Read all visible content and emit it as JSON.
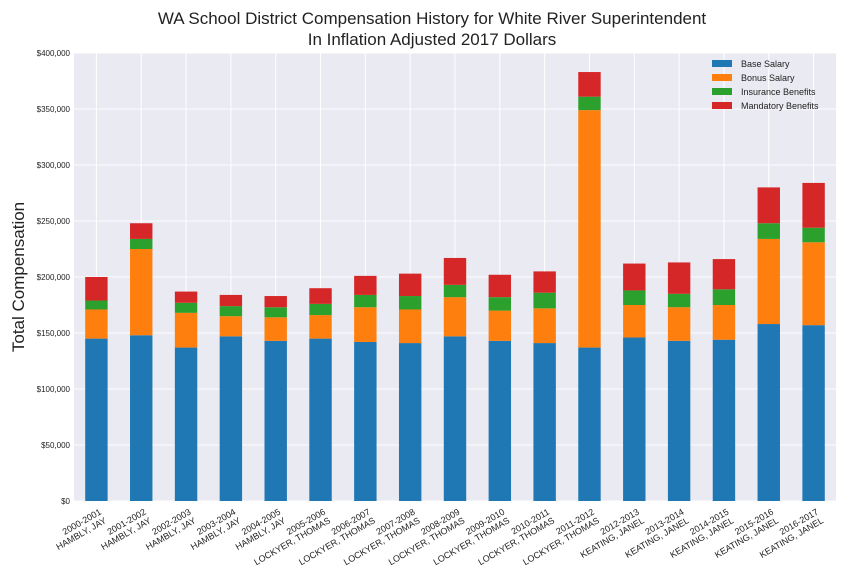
{
  "chart_data": {
    "type": "bar",
    "stacked": true,
    "title": "WA School District Compensation History for White River Superintendent",
    "subtitle": "In Inflation Adjusted 2017 Dollars",
    "xlabel": "",
    "ylabel": "Total Compensation",
    "ylim": [
      0,
      400000
    ],
    "yticks": [
      "$0",
      "$50,000",
      "$100,000",
      "$150,000",
      "$200,000",
      "$250,000",
      "$300,000",
      "$350,000",
      "$400,000"
    ],
    "grid": true,
    "legend_position": "top-right",
    "categories": [
      [
        "2000-2001",
        "HAMBLY, JAY"
      ],
      [
        "2001-2002",
        "HAMBLY, JAY"
      ],
      [
        "2002-2003",
        "HAMBLY, JAY"
      ],
      [
        "2003-2004",
        "HAMBLY, JAY"
      ],
      [
        "2004-2005",
        "HAMBLY, JAY"
      ],
      [
        "2005-2006",
        "LOCKYER, THOMAS"
      ],
      [
        "2006-2007",
        "LOCKYER, THOMAS"
      ],
      [
        "2007-2008",
        "LOCKYER, THOMAS"
      ],
      [
        "2008-2009",
        "LOCKYER, THOMAS"
      ],
      [
        "2009-2010",
        "LOCKYER, THOMAS"
      ],
      [
        "2010-2011",
        "LOCKYER, THOMAS"
      ],
      [
        "2011-2012",
        "LOCKYER, THOMAS"
      ],
      [
        "2012-2013",
        "KEATING, JANEL"
      ],
      [
        "2013-2014",
        "KEATING, JANEL"
      ],
      [
        "2014-2015",
        "KEATING, JANEL"
      ],
      [
        "2015-2016",
        "KEATING, JANEL"
      ],
      [
        "2016-2017",
        "KEATING, JANEL"
      ]
    ],
    "series": [
      {
        "name": "Base Salary",
        "color": "#1f77b4",
        "values": [
          145000,
          148000,
          137000,
          147000,
          143000,
          145000,
          142000,
          141000,
          147000,
          143000,
          141000,
          137000,
          146000,
          143000,
          144000,
          158000,
          157000
        ]
      },
      {
        "name": "Bonus Salary",
        "color": "#ff7f0e",
        "values": [
          26000,
          77000,
          31000,
          18000,
          21000,
          21000,
          31000,
          30000,
          35000,
          27000,
          31000,
          212000,
          29000,
          30000,
          31000,
          76000,
          74000
        ]
      },
      {
        "name": "Insurance Benefits",
        "color": "#2ca02c",
        "values": [
          8000,
          9000,
          9000,
          9000,
          9000,
          10000,
          11000,
          12000,
          11000,
          12000,
          14000,
          12000,
          13000,
          12000,
          14000,
          14000,
          13000
        ]
      },
      {
        "name": "Mandatory Benefits",
        "color": "#d62728",
        "values": [
          21000,
          14000,
          10000,
          10000,
          10000,
          14000,
          17000,
          20000,
          24000,
          20000,
          19000,
          22000,
          24000,
          28000,
          27000,
          32000,
          40000
        ]
      }
    ]
  }
}
